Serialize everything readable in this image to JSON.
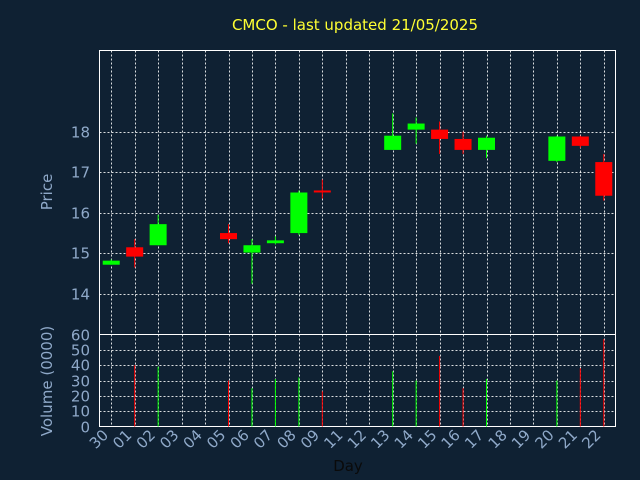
{
  "chart_data": {
    "type": "candlestick",
    "title": "CMCO - last updated 21/05/2025",
    "xlabel": "Day",
    "price_ylabel": "Price",
    "volume_ylabel": "Volume (0000)",
    "price_ylim": [
      13.0,
      20.0
    ],
    "price_ticks": [
      14,
      15,
      16,
      17,
      18
    ],
    "volume_ylim": [
      0,
      60
    ],
    "volume_ticks": [
      0,
      10,
      20,
      30,
      40,
      50,
      60
    ],
    "grid": true,
    "colors": {
      "up": "#00ff00",
      "down": "#ff0000",
      "background": "#0f2133",
      "title": "#ffff33",
      "tick": "#8fa9c9"
    },
    "x_labels": [
      "30",
      "01",
      "02",
      "03",
      "04",
      "05",
      "06",
      "07",
      "08",
      "09",
      "11",
      "12",
      "13",
      "14",
      "15",
      "16",
      "17",
      "18",
      "19",
      "20",
      "21",
      "22"
    ],
    "candles": [
      {
        "x": 0,
        "open": 14.72,
        "close": 14.82,
        "high": 14.85,
        "low": 14.72,
        "volume": 0
      },
      {
        "x": 1,
        "open": 15.15,
        "close": 14.92,
        "high": 15.35,
        "low": 14.65,
        "volume": 40
      },
      {
        "x": 2,
        "open": 15.2,
        "close": 15.72,
        "high": 15.95,
        "low": 15.2,
        "volume": 39
      },
      {
        "x": 5,
        "open": 15.5,
        "close": 15.35,
        "high": 15.72,
        "low": 15.25,
        "volume": 30
      },
      {
        "x": 6,
        "open": 15.02,
        "close": 15.2,
        "high": 15.35,
        "low": 14.25,
        "volume": 25
      },
      {
        "x": 7,
        "open": 15.25,
        "close": 15.32,
        "high": 15.42,
        "low": 15.22,
        "volume": 31
      },
      {
        "x": 8,
        "open": 15.5,
        "close": 16.5,
        "high": 16.55,
        "low": 15.45,
        "volume": 32
      },
      {
        "x": 9,
        "open": 16.55,
        "close": 16.52,
        "high": 16.82,
        "low": 16.35,
        "volume": 23
      },
      {
        "x": 12,
        "open": 17.55,
        "close": 17.9,
        "high": 18.45,
        "low": 17.55,
        "volume": 36
      },
      {
        "x": 13,
        "open": 18.05,
        "close": 18.2,
        "high": 18.35,
        "low": 17.7,
        "volume": 30
      },
      {
        "x": 14,
        "open": 18.05,
        "close": 17.82,
        "high": 18.25,
        "low": 17.45,
        "volume": 46
      },
      {
        "x": 15,
        "open": 17.82,
        "close": 17.55,
        "high": 18.0,
        "low": 17.45,
        "volume": 25
      },
      {
        "x": 16,
        "open": 17.55,
        "close": 17.85,
        "high": 17.9,
        "low": 17.35,
        "volume": 31
      },
      {
        "x": 19,
        "open": 17.28,
        "close": 17.88,
        "high": 17.9,
        "low": 17.25,
        "volume": 30
      },
      {
        "x": 20,
        "open": 17.88,
        "close": 17.65,
        "high": 17.9,
        "low": 17.6,
        "volume": 38
      },
      {
        "x": 21,
        "open": 17.25,
        "close": 16.42,
        "high": 17.45,
        "low": 16.3,
        "volume": 57
      }
    ]
  }
}
